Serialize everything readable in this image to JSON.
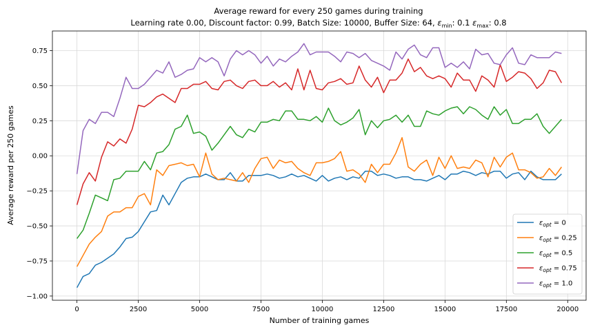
{
  "chart_data": {
    "type": "line",
    "title": "Average reward for every 250 games during training",
    "subtitle": "Learning rate 0.00, Discount factor: 0.99, Batch Size: 10000, Buffer Size: 64, ε_min: 0.1 ε_max: 0.8",
    "xlabel": "Number of training games",
    "ylabel": "Average reward per 250 games",
    "xlim": [
      -1000,
      20750
    ],
    "ylim": [
      -1.03,
      0.89
    ],
    "xticks": [
      0,
      2500,
      5000,
      7500,
      10000,
      12500,
      15000,
      17500,
      20000
    ],
    "xtick_labels": [
      "0",
      "2500",
      "5000",
      "7500",
      "10000",
      "12500",
      "15000",
      "17500",
      "20000"
    ],
    "yticks": [
      -1.0,
      -0.75,
      -0.5,
      -0.25,
      0.0,
      0.25,
      0.5,
      0.75
    ],
    "ytick_labels": [
      "−1.00",
      "−0.75",
      "−0.50",
      "−0.25",
      "0.00",
      "0.25",
      "0.50",
      "0.75"
    ],
    "grid": true,
    "legend_position": "lower-right",
    "x": [
      0,
      250,
      500,
      750,
      1000,
      1250,
      1500,
      1750,
      2000,
      2250,
      2500,
      2750,
      3000,
      3250,
      3500,
      3750,
      4000,
      4250,
      4500,
      4750,
      5000,
      5250,
      5500,
      5750,
      6000,
      6250,
      6500,
      6750,
      7000,
      7250,
      7500,
      7750,
      8000,
      8250,
      8500,
      8750,
      9000,
      9250,
      9500,
      9750,
      10000,
      10250,
      10500,
      10750,
      11000,
      11250,
      11500,
      11750,
      12000,
      12250,
      12500,
      12750,
      13000,
      13250,
      13500,
      13750,
      14000,
      14250,
      14500,
      14750,
      15000,
      15250,
      15500,
      15750,
      16000,
      16250,
      16500,
      16750,
      17000,
      17250,
      17500,
      17750,
      18000,
      18250,
      18500,
      18750,
      19000,
      19250,
      19500,
      19750
    ],
    "series": [
      {
        "name": "ε_opt = 0",
        "legend_main": "ε",
        "legend_sub": "opt",
        "legend_rest": " = 0",
        "color": "#1f77b4",
        "values": [
          -0.94,
          -0.86,
          -0.84,
          -0.78,
          -0.76,
          -0.73,
          -0.7,
          -0.65,
          -0.59,
          -0.58,
          -0.54,
          -0.47,
          -0.4,
          -0.39,
          -0.28,
          -0.35,
          -0.27,
          -0.19,
          -0.16,
          -0.15,
          -0.15,
          -0.13,
          -0.15,
          -0.17,
          -0.17,
          -0.12,
          -0.18,
          -0.18,
          -0.14,
          -0.14,
          -0.14,
          -0.13,
          -0.14,
          -0.16,
          -0.15,
          -0.13,
          -0.15,
          -0.14,
          -0.16,
          -0.18,
          -0.14,
          -0.18,
          -0.16,
          -0.15,
          -0.17,
          -0.15,
          -0.16,
          -0.11,
          -0.11,
          -0.14,
          -0.13,
          -0.14,
          -0.16,
          -0.15,
          -0.15,
          -0.17,
          -0.17,
          -0.18,
          -0.16,
          -0.14,
          -0.17,
          -0.13,
          -0.13,
          -0.11,
          -0.12,
          -0.14,
          -0.12,
          -0.13,
          -0.11,
          -0.11,
          -0.16,
          -0.13,
          -0.12,
          -0.17,
          -0.11,
          -0.15,
          -0.17,
          -0.17,
          -0.17,
          -0.13
        ]
      },
      {
        "name": "ε_opt = 0.25",
        "legend_main": "ε",
        "legend_sub": "opt",
        "legend_rest": " = 0.25",
        "color": "#ff7f0e",
        "values": [
          -0.79,
          -0.71,
          -0.63,
          -0.58,
          -0.54,
          -0.43,
          -0.4,
          -0.4,
          -0.37,
          -0.37,
          -0.29,
          -0.27,
          -0.35,
          -0.1,
          -0.14,
          -0.07,
          -0.06,
          -0.05,
          -0.07,
          -0.06,
          -0.15,
          0.02,
          -0.13,
          -0.17,
          -0.16,
          -0.17,
          -0.18,
          -0.12,
          -0.19,
          -0.09,
          -0.02,
          -0.01,
          -0.09,
          -0.03,
          -0.05,
          -0.04,
          -0.09,
          -0.12,
          -0.14,
          -0.05,
          -0.05,
          -0.04,
          -0.02,
          0.03,
          -0.11,
          -0.1,
          -0.13,
          -0.19,
          -0.06,
          -0.12,
          -0.06,
          -0.06,
          0.02,
          0.13,
          -0.08,
          -0.11,
          -0.06,
          -0.03,
          -0.14,
          -0.01,
          -0.09,
          0.0,
          -0.09,
          -0.08,
          -0.09,
          -0.03,
          -0.05,
          -0.15,
          -0.01,
          -0.08,
          -0.01,
          0.02,
          -0.1,
          -0.1,
          -0.12,
          -0.16,
          -0.15,
          -0.09,
          -0.14,
          -0.08
        ]
      },
      {
        "name": "ε_opt = 0.5",
        "legend_main": "ε",
        "legend_sub": "opt",
        "legend_rest": " = 0.5",
        "color": "#2ca02c",
        "values": [
          -0.59,
          -0.53,
          -0.41,
          -0.28,
          -0.3,
          -0.32,
          -0.17,
          -0.16,
          -0.11,
          -0.11,
          -0.11,
          -0.04,
          -0.1,
          0.02,
          0.03,
          0.08,
          0.19,
          0.21,
          0.29,
          0.16,
          0.17,
          0.14,
          0.04,
          0.09,
          0.15,
          0.21,
          0.15,
          0.13,
          0.19,
          0.17,
          0.24,
          0.24,
          0.26,
          0.25,
          0.32,
          0.32,
          0.26,
          0.26,
          0.25,
          0.28,
          0.24,
          0.34,
          0.25,
          0.22,
          0.24,
          0.27,
          0.33,
          0.15,
          0.25,
          0.2,
          0.25,
          0.26,
          0.29,
          0.24,
          0.29,
          0.21,
          0.21,
          0.32,
          0.3,
          0.29,
          0.32,
          0.34,
          0.35,
          0.3,
          0.35,
          0.33,
          0.29,
          0.26,
          0.35,
          0.29,
          0.33,
          0.23,
          0.23,
          0.26,
          0.26,
          0.3,
          0.21,
          0.16,
          0.21,
          0.26
        ]
      },
      {
        "name": "ε_opt = 0.75",
        "legend_main": "ε",
        "legend_sub": "opt",
        "legend_rest": " = 0.75",
        "color": "#d62728",
        "values": [
          -0.35,
          -0.2,
          -0.12,
          -0.18,
          -0.01,
          0.1,
          0.07,
          0.12,
          0.09,
          0.19,
          0.36,
          0.35,
          0.38,
          0.42,
          0.44,
          0.41,
          0.38,
          0.48,
          0.48,
          0.51,
          0.51,
          0.53,
          0.48,
          0.47,
          0.53,
          0.54,
          0.5,
          0.48,
          0.53,
          0.54,
          0.5,
          0.5,
          0.53,
          0.49,
          0.52,
          0.47,
          0.62,
          0.47,
          0.61,
          0.48,
          0.47,
          0.52,
          0.53,
          0.55,
          0.51,
          0.52,
          0.64,
          0.54,
          0.49,
          0.56,
          0.45,
          0.54,
          0.54,
          0.59,
          0.69,
          0.6,
          0.63,
          0.57,
          0.55,
          0.57,
          0.55,
          0.49,
          0.59,
          0.54,
          0.54,
          0.46,
          0.57,
          0.54,
          0.49,
          0.65,
          0.53,
          0.56,
          0.6,
          0.59,
          0.55,
          0.48,
          0.52,
          0.61,
          0.6,
          0.52
        ]
      },
      {
        "name": "ε_opt = 1.0",
        "legend_main": "ε",
        "legend_sub": "opt",
        "legend_rest": " = 1.0",
        "color": "#9467bd",
        "values": [
          -0.13,
          0.18,
          0.26,
          0.23,
          0.31,
          0.31,
          0.28,
          0.41,
          0.56,
          0.48,
          0.48,
          0.51,
          0.56,
          0.61,
          0.59,
          0.67,
          0.56,
          0.58,
          0.61,
          0.62,
          0.7,
          0.67,
          0.7,
          0.67,
          0.57,
          0.69,
          0.75,
          0.72,
          0.75,
          0.72,
          0.66,
          0.71,
          0.64,
          0.69,
          0.67,
          0.71,
          0.74,
          0.8,
          0.72,
          0.74,
          0.74,
          0.74,
          0.71,
          0.67,
          0.74,
          0.73,
          0.7,
          0.73,
          0.68,
          0.66,
          0.64,
          0.61,
          0.74,
          0.69,
          0.76,
          0.79,
          0.72,
          0.7,
          0.77,
          0.77,
          0.63,
          0.66,
          0.63,
          0.67,
          0.62,
          0.76,
          0.72,
          0.73,
          0.66,
          0.65,
          0.72,
          0.77,
          0.66,
          0.65,
          0.72,
          0.7,
          0.7,
          0.7,
          0.74,
          0.73
        ]
      }
    ]
  }
}
